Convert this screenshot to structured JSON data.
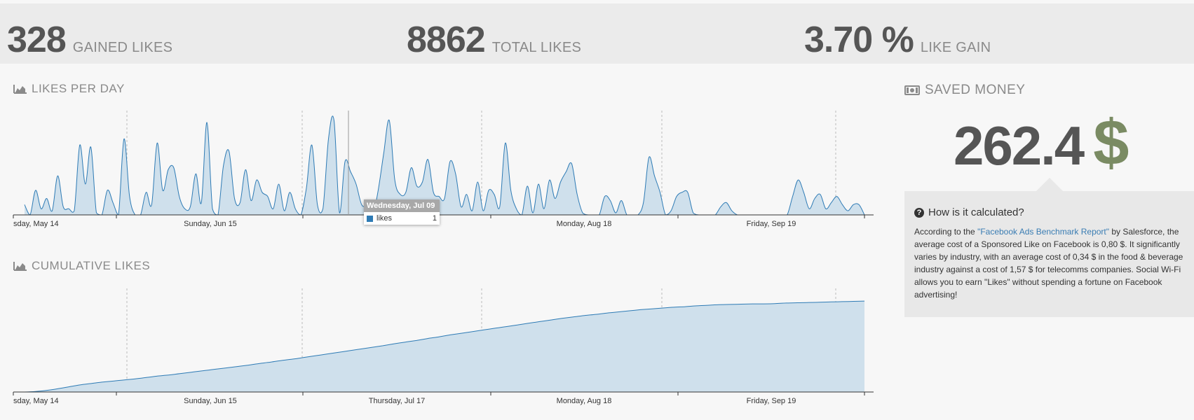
{
  "stats": [
    {
      "value": "328",
      "label": "GAINED LIKES"
    },
    {
      "value": "8862",
      "label": "TOTAL LIKES"
    },
    {
      "value": "3.70 %",
      "label": "LIKE GAIN"
    }
  ],
  "likes_per_day": {
    "title": "LIKES PER DAY"
  },
  "cumulative": {
    "title": "CUMULATIVE LIKES"
  },
  "saved_money": {
    "title": "SAVED MONEY",
    "amount": "262.4",
    "currency": "$",
    "info_title": "How is it calculated?",
    "info_prefix": "According to the ",
    "info_link": "\"Facebook Ads Benchmark Report\"",
    "info_suffix": " by Salesforce, the average cost of a Sponsored Like on Facebook is 0,80 $. It significantly varies by industry, with an average cost of 0,34 $ in the food & beverage industry against a cost of 1,57 $ for telecomms companies. Social Wi-Fi allows you to earn \"Likes\" without spending a fortune on Facebook advertising!"
  },
  "tooltip": {
    "date": "Wednesday, Jul 09",
    "series": "likes",
    "value": "1"
  },
  "colors": {
    "accent": "#2e7bb5",
    "fill": "#cfe0ec",
    "money": "#7a8b63"
  },
  "chart_data": [
    {
      "type": "area",
      "title": "LIKES PER DAY",
      "x_tick_labels": [
        "sday, May 14",
        "Sunday, Jun 15",
        "Monday, Aug 18",
        "Friday, Sep 19"
      ],
      "series": [
        {
          "name": "likes",
          "values": [
            0.5,
            0,
            1.2,
            0.3,
            0.8,
            0.2,
            1.9,
            0.4,
            0.3,
            0.2,
            3.4,
            1.5,
            3.3,
            0.1,
            0,
            1.2,
            0.6,
            0,
            3.7,
            0.9,
            0,
            0,
            1.1,
            0.5,
            3.5,
            1.2,
            2.2,
            2.3,
            0.9,
            0.3,
            0.4,
            2,
            0.6,
            4.5,
            0.3,
            0,
            2.4,
            3.1,
            0.8,
            0.6,
            2.2,
            0.7,
            1.7,
            1.1,
            0.9,
            0.3,
            1.5,
            0.2,
            1.1,
            0.3,
            0,
            1.3,
            3.4,
            0.5,
            0.3,
            3.7,
            4.6,
            0.1,
            2.6,
            2.1,
            1.5,
            0.5,
            0.4,
            0,
            1.2,
            3,
            4.6,
            1.7,
            1,
            1.1,
            2.3,
            1.4,
            1.6,
            2.7,
            1.1,
            0.9,
            0.8,
            2.6,
            2,
            0.4,
            1,
            0.2,
            1.6,
            0.2,
            1.2,
            1,
            0.4,
            3.5,
            1.2,
            0.3,
            0,
            1.4,
            0.1,
            1.5,
            0.3,
            1.7,
            0.8,
            1.6,
            2.1,
            2.5,
            1,
            0.1,
            0,
            0,
            0,
            0.9,
            0.7,
            0.1,
            0.7,
            0,
            0,
            0,
            0.6,
            2.8,
            1.9,
            1.1,
            0,
            0.2,
            0.9,
            1.1,
            1.1,
            0.1,
            0,
            0,
            0,
            0,
            0.4,
            0.6,
            0.2,
            0,
            0,
            0,
            0,
            0,
            0,
            0,
            0,
            0,
            0,
            0.9,
            1.7,
            1.1,
            0.3,
            0.8,
            1,
            0.3,
            0.6,
            0.9,
            0.5,
            0.2,
            0.5,
            0.5,
            0
          ]
        }
      ]
    },
    {
      "type": "area",
      "title": "CUMULATIVE LIKES",
      "x_tick_labels": [
        "sday, May 14",
        "Sunday, Jun 15",
        "Thursday, Jul 17",
        "Monday, Aug 18",
        "Friday, Sep 19"
      ],
      "series": [
        {
          "name": "likes",
          "values": [
            8534,
            8536,
            8540,
            8546,
            8553,
            8560,
            8565,
            8570,
            8574,
            8578,
            8582,
            8587,
            8592,
            8596,
            8601,
            8606,
            8611,
            8616,
            8621,
            8626,
            8631,
            8637,
            8642,
            8648,
            8653,
            8659,
            8665,
            8671,
            8677,
            8683,
            8689,
            8695,
            8701,
            8708,
            8714,
            8720,
            8727,
            8733,
            8740,
            8746,
            8752,
            8758,
            8764,
            8770,
            8776,
            8782,
            8788,
            8794,
            8800,
            8805,
            8810,
            8814,
            8819,
            8823,
            8827,
            8831,
            8834,
            8837,
            8840,
            8842,
            8845,
            8847,
            8849,
            8850,
            8851,
            8852,
            8852,
            8853,
            8855,
            8856,
            8857,
            8858,
            8859,
            8860,
            8861,
            8862
          ]
        }
      ]
    }
  ]
}
